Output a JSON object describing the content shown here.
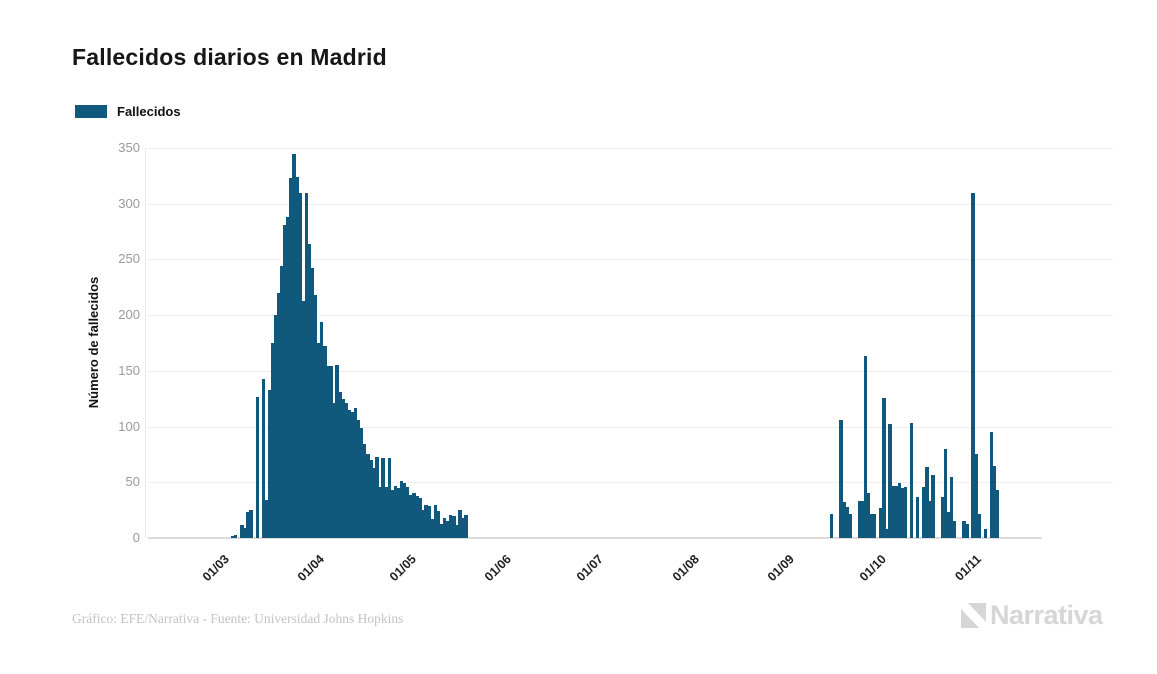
{
  "header": {
    "title": "Fallecidos diarios en Madrid"
  },
  "legend": {
    "label": "Fallecidos",
    "swatch_color": "#10587c"
  },
  "footer": {
    "credit": "Gráfico: EFE/Narrativa - Fuente: Universidad Johns Hopkins"
  },
  "logo": {
    "text": "Narrativa"
  },
  "chart_data": {
    "type": "bar",
    "title": "Fallecidos diarios en Madrid",
    "series_name": "Fallecidos",
    "xlabel": "",
    "ylabel": "Número de fallecidos",
    "ylim": [
      0,
      350
    ],
    "yticks": [
      0,
      50,
      100,
      150,
      200,
      250,
      300,
      350
    ],
    "xtick_labels": [
      "01/03",
      "01/04",
      "01/05",
      "01/06",
      "01/07",
      "01/08",
      "01/09",
      "01/10",
      "01/11"
    ],
    "xtick_months": [
      "2020-03-01",
      "2020-04-01",
      "2020-05-01",
      "2020-06-01",
      "2020-07-01",
      "2020-08-01",
      "2020-09-01",
      "2020-10-01",
      "2020-11-01"
    ],
    "x_domain": [
      "2020-02-07",
      "2020-11-24"
    ],
    "grid": "horizontal",
    "legend_position": "top-left",
    "bar_color": "#10587c",
    "note": "days not listed have value 0",
    "points": [
      [
        "2020-03-05",
        2
      ],
      [
        "2020-03-06",
        3
      ],
      [
        "2020-03-08",
        12
      ],
      [
        "2020-03-09",
        9
      ],
      [
        "2020-03-10",
        23
      ],
      [
        "2020-03-11",
        25
      ],
      [
        "2020-03-13",
        127
      ],
      [
        "2020-03-15",
        143
      ],
      [
        "2020-03-16",
        34
      ],
      [
        "2020-03-17",
        133
      ],
      [
        "2020-03-18",
        175
      ],
      [
        "2020-03-19",
        200
      ],
      [
        "2020-03-20",
        220
      ],
      [
        "2020-03-21",
        244
      ],
      [
        "2020-03-22",
        281
      ],
      [
        "2020-03-23",
        288
      ],
      [
        "2020-03-24",
        323
      ],
      [
        "2020-03-25",
        345
      ],
      [
        "2020-03-26",
        324
      ],
      [
        "2020-03-27",
        310
      ],
      [
        "2020-03-28",
        213
      ],
      [
        "2020-03-29",
        310
      ],
      [
        "2020-03-30",
        264
      ],
      [
        "2020-03-31",
        242
      ],
      [
        "2020-04-01",
        218
      ],
      [
        "2020-04-02",
        175
      ],
      [
        "2020-04-03",
        194
      ],
      [
        "2020-04-04",
        172
      ],
      [
        "2020-04-05",
        154
      ],
      [
        "2020-04-06",
        154
      ],
      [
        "2020-04-07",
        121
      ],
      [
        "2020-04-08",
        155
      ],
      [
        "2020-04-09",
        131
      ],
      [
        "2020-04-10",
        125
      ],
      [
        "2020-04-11",
        121
      ],
      [
        "2020-04-12",
        115
      ],
      [
        "2020-04-13",
        113
      ],
      [
        "2020-04-14",
        117
      ],
      [
        "2020-04-15",
        106
      ],
      [
        "2020-04-16",
        99
      ],
      [
        "2020-04-17",
        84
      ],
      [
        "2020-04-18",
        75
      ],
      [
        "2020-04-19",
        70
      ],
      [
        "2020-04-20",
        63
      ],
      [
        "2020-04-21",
        73
      ],
      [
        "2020-04-22",
        46
      ],
      [
        "2020-04-23",
        72
      ],
      [
        "2020-04-24",
        46
      ],
      [
        "2020-04-25",
        72
      ],
      [
        "2020-04-26",
        43
      ],
      [
        "2020-04-27",
        47
      ],
      [
        "2020-04-28",
        45
      ],
      [
        "2020-04-29",
        51
      ],
      [
        "2020-04-30",
        49
      ],
      [
        "2020-05-01",
        46
      ],
      [
        "2020-05-02",
        39
      ],
      [
        "2020-05-03",
        40
      ],
      [
        "2020-05-04",
        38
      ],
      [
        "2020-05-05",
        36
      ],
      [
        "2020-05-06",
        25
      ],
      [
        "2020-05-07",
        30
      ],
      [
        "2020-05-08",
        29
      ],
      [
        "2020-05-09",
        17
      ],
      [
        "2020-05-10",
        30
      ],
      [
        "2020-05-11",
        24
      ],
      [
        "2020-05-12",
        13
      ],
      [
        "2020-05-13",
        18
      ],
      [
        "2020-05-14",
        15
      ],
      [
        "2020-05-15",
        21
      ],
      [
        "2020-05-16",
        20
      ],
      [
        "2020-05-17",
        12
      ],
      [
        "2020-05-18",
        25
      ],
      [
        "2020-05-19",
        18
      ],
      [
        "2020-05-20",
        21
      ],
      [
        "2020-09-16",
        22
      ],
      [
        "2020-09-19",
        106
      ],
      [
        "2020-09-20",
        32
      ],
      [
        "2020-09-21",
        28
      ],
      [
        "2020-09-22",
        22
      ],
      [
        "2020-09-25",
        33
      ],
      [
        "2020-09-26",
        33
      ],
      [
        "2020-09-27",
        163
      ],
      [
        "2020-09-28",
        40
      ],
      [
        "2020-09-29",
        22
      ],
      [
        "2020-09-30",
        22
      ],
      [
        "2020-10-02",
        27
      ],
      [
        "2020-10-03",
        126
      ],
      [
        "2020-10-04",
        8
      ],
      [
        "2020-10-05",
        102
      ],
      [
        "2020-10-06",
        47
      ],
      [
        "2020-10-07",
        47
      ],
      [
        "2020-10-08",
        49
      ],
      [
        "2020-10-09",
        45
      ],
      [
        "2020-10-10",
        46
      ],
      [
        "2020-10-12",
        103
      ],
      [
        "2020-10-14",
        37
      ],
      [
        "2020-10-16",
        46
      ],
      [
        "2020-10-17",
        64
      ],
      [
        "2020-10-18",
        33
      ],
      [
        "2020-10-19",
        57
      ],
      [
        "2020-10-22",
        37
      ],
      [
        "2020-10-23",
        80
      ],
      [
        "2020-10-24",
        23
      ],
      [
        "2020-10-25",
        55
      ],
      [
        "2020-10-26",
        15
      ],
      [
        "2020-10-29",
        15
      ],
      [
        "2020-10-30",
        13
      ],
      [
        "2020-11-01",
        310
      ],
      [
        "2020-11-02",
        75
      ],
      [
        "2020-11-03",
        22
      ],
      [
        "2020-11-05",
        8
      ],
      [
        "2020-11-07",
        95
      ],
      [
        "2020-11-08",
        65
      ],
      [
        "2020-11-09",
        43
      ]
    ]
  }
}
